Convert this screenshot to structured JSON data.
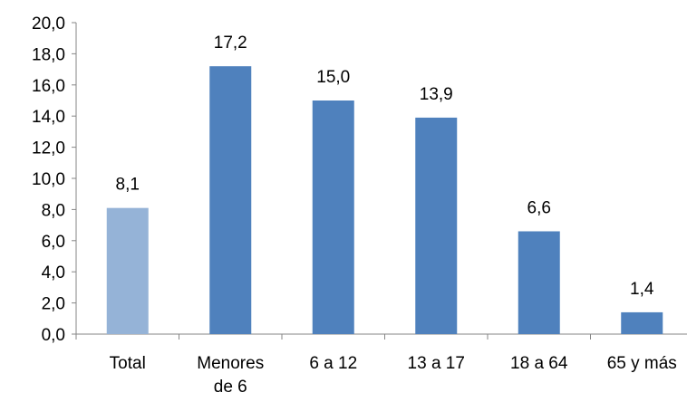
{
  "chart_data": {
    "type": "bar",
    "categories": [
      [
        "Total"
      ],
      [
        "Menores",
        "de 6"
      ],
      [
        "6 a 12"
      ],
      [
        "13 a 17"
      ],
      [
        "18 a 64"
      ],
      [
        "65 y más"
      ]
    ],
    "values": [
      8.1,
      17.2,
      15.0,
      13.9,
      6.6,
      1.4
    ],
    "data_labels": [
      "8,1",
      "17,2",
      "15,0",
      "13,9",
      "6,6",
      "1,4"
    ],
    "bar_colors": [
      "#95b3d7",
      "#4f81bd",
      "#4f81bd",
      "#4f81bd",
      "#4f81bd",
      "#4f81bd"
    ],
    "yticks": [
      "0,0",
      "2,0",
      "4,0",
      "6,0",
      "8,0",
      "10,0",
      "12,0",
      "14,0",
      "16,0",
      "18,0",
      "20,0"
    ],
    "ylim": [
      0,
      20
    ],
    "grid": false,
    "legend": "none",
    "title": "",
    "xlabel": "",
    "ylabel": ""
  }
}
